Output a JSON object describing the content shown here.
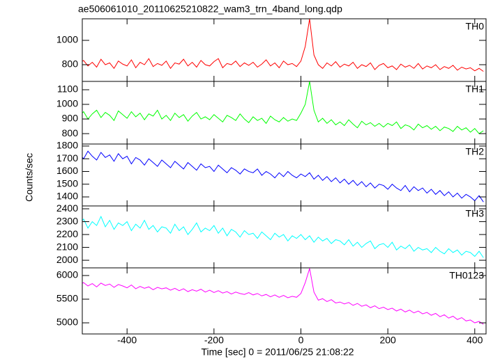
{
  "chart_data": {
    "type": "line",
    "title": "ae506061010_20110625210822_wam3_trn_4band_long.qdp",
    "x_label": "Time [sec] 0 = 2011/06/25 21:08:22",
    "y_label": "Counts/sec",
    "xlim": [
      -503,
      426
    ],
    "xticks": [
      -400,
      -200,
      0,
      200,
      400
    ],
    "x": [
      -510,
      -500,
      -490,
      -480,
      -470,
      -460,
      -450,
      -440,
      -430,
      -420,
      -410,
      -400,
      -390,
      -380,
      -370,
      -360,
      -350,
      -340,
      -330,
      -320,
      -310,
      -300,
      -290,
      -280,
      -270,
      -260,
      -250,
      -240,
      -230,
      -220,
      -210,
      -200,
      -190,
      -180,
      -170,
      -160,
      -150,
      -140,
      -130,
      -120,
      -110,
      -100,
      -90,
      -80,
      -70,
      -60,
      -50,
      -40,
      -30,
      -20,
      -10,
      0,
      10,
      20,
      30,
      40,
      50,
      60,
      70,
      80,
      90,
      100,
      110,
      120,
      130,
      140,
      150,
      160,
      170,
      180,
      190,
      200,
      210,
      220,
      230,
      240,
      250,
      260,
      270,
      280,
      290,
      300,
      310,
      320,
      330,
      340,
      350,
      360,
      370,
      380,
      390,
      400,
      410,
      420
    ],
    "panels": [
      {
        "name": "TH0",
        "color": "#ff0000",
        "ylim": [
          663,
          1177
        ],
        "yticks": [
          800,
          1000
        ],
        "values": [
          810,
          835,
          790,
          820,
          780,
          845,
          800,
          815,
          770,
          830,
          805,
          790,
          840,
          775,
          820,
          800,
          850,
          785,
          810,
          795,
          830,
          770,
          815,
          805,
          845,
          790,
          820,
          780,
          835,
          800,
          790,
          825,
          850,
          775,
          810,
          800,
          830,
          785,
          815,
          795,
          820,
          780,
          805,
          840,
          790,
          815,
          775,
          830,
          800,
          810,
          785,
          830,
          950,
          1177,
          880,
          800,
          770,
          815,
          790,
          825,
          780,
          805,
          790,
          820,
          770,
          800,
          785,
          815,
          760,
          795,
          810,
          775,
          790,
          760,
          805,
          780,
          795,
          770,
          810,
          765,
          790,
          775,
          800,
          760,
          785,
          770,
          795,
          755,
          780,
          765,
          775,
          750,
          770,
          745
        ]
      },
      {
        "name": "TH1",
        "color": "#00ff00",
        "ylim": [
          729,
          1157
        ],
        "yticks": [
          800,
          900,
          1000,
          1100
        ],
        "values": [
          920,
          950,
          900,
          935,
          960,
          910,
          945,
          925,
          890,
          955,
          930,
          905,
          950,
          915,
          940,
          895,
          935,
          920,
          960,
          900,
          925,
          890,
          940,
          910,
          930,
          885,
          920,
          945,
          900,
          915,
          895,
          930,
          905,
          880,
          925,
          910,
          890,
          935,
          900,
          875,
          915,
          890,
          905,
          870,
          920,
          895,
          880,
          910,
          885,
          900,
          890,
          940,
          1000,
          1157,
          960,
          880,
          905,
          870,
          895,
          860,
          880,
          855,
          895,
          865,
          840,
          885,
          860,
          875,
          850,
          870,
          845,
          870,
          855,
          880,
          835,
          860,
          850,
          825,
          865,
          840,
          855,
          830,
          850,
          820,
          845,
          835,
          815,
          850,
          825,
          840,
          810,
          835,
          800,
          820
        ]
      },
      {
        "name": "TH2",
        "color": "#0000ff",
        "ylim": [
          1329,
          1816
        ],
        "yticks": [
          1400,
          1500,
          1600,
          1700,
          1800
        ],
        "values": [
          1740,
          1700,
          1760,
          1720,
          1690,
          1750,
          1710,
          1730,
          1680,
          1740,
          1700,
          1720,
          1660,
          1710,
          1690,
          1650,
          1700,
          1670,
          1640,
          1690,
          1660,
          1630,
          1680,
          1650,
          1620,
          1670,
          1640,
          1610,
          1660,
          1630,
          1640,
          1600,
          1650,
          1620,
          1590,
          1630,
          1610,
          1580,
          1620,
          1600,
          1590,
          1620,
          1570,
          1600,
          1580,
          1550,
          1590,
          1560,
          1600,
          1570,
          1550,
          1580,
          1560,
          1590,
          1540,
          1570,
          1530,
          1560,
          1520,
          1550,
          1510,
          1540,
          1500,
          1530,
          1490,
          1520,
          1480,
          1510,
          1470,
          1500,
          1490,
          1460,
          1500,
          1470,
          1450,
          1490,
          1440,
          1480,
          1450,
          1470,
          1430,
          1460,
          1420,
          1450,
          1410,
          1440,
          1400,
          1430,
          1390,
          1420,
          1400,
          1370,
          1410,
          1360
        ]
      },
      {
        "name": "TH3",
        "color": "#00ffff",
        "ylim": [
          1941,
          2422
        ],
        "yticks": [
          2000,
          2100,
          2200,
          2300,
          2400
        ],
        "values": [
          2280,
          2320,
          2250,
          2300,
          2270,
          2340,
          2260,
          2310,
          2240,
          2290,
          2270,
          2300,
          2230,
          2280,
          2250,
          2310,
          2240,
          2270,
          2220,
          2260,
          2250,
          2210,
          2280,
          2230,
          2260,
          2200,
          2240,
          2290,
          2220,
          2250,
          2230,
          2270,
          2210,
          2250,
          2190,
          2240,
          2220,
          2180,
          2230,
          2200,
          2210,
          2170,
          2220,
          2190,
          2160,
          2210,
          2180,
          2200,
          2150,
          2190,
          2170,
          2200,
          2160,
          2190,
          2140,
          2180,
          2150,
          2170,
          2130,
          2160,
          2150,
          2120,
          2160,
          2110,
          2140,
          2100,
          2130,
          2150,
          2090,
          2120,
          2130,
          2100,
          2140,
          2080,
          2110,
          2090,
          2120,
          2070,
          2100,
          2080,
          2090,
          2060,
          2100,
          2070,
          2050,
          2090,
          2060,
          2080,
          2040,
          2070,
          2060,
          2030,
          2070,
          2020
        ]
      },
      {
        "name": "TH0123",
        "color": "#ff00ff",
        "ylim": [
          4765,
          6162
        ],
        "yticks": [
          5000,
          5500,
          6000
        ],
        "values": [
          5800,
          5850,
          5780,
          5830,
          5760,
          5840,
          5790,
          5820,
          5750,
          5810,
          5780,
          5740,
          5800,
          5720,
          5770,
          5730,
          5760,
          5700,
          5750,
          5720,
          5740,
          5690,
          5730,
          5680,
          5720,
          5660,
          5700,
          5670,
          5710,
          5650,
          5690,
          5640,
          5680,
          5630,
          5660,
          5610,
          5650,
          5620,
          5600,
          5640,
          5590,
          5620,
          5570,
          5600,
          5550,
          5590,
          5540,
          5580,
          5530,
          5560,
          5540,
          5620,
          5850,
          6150,
          5650,
          5480,
          5510,
          5450,
          5490,
          5420,
          5440,
          5400,
          5430,
          5370,
          5410,
          5350,
          5380,
          5320,
          5360,
          5300,
          5330,
          5280,
          5310,
          5250,
          5290,
          5230,
          5270,
          5210,
          5250,
          5190,
          5220,
          5160,
          5200,
          5130,
          5170,
          5100,
          5140,
          5070,
          5110,
          5040,
          5060,
          5000,
          5030,
          4970
        ]
      }
    ]
  }
}
